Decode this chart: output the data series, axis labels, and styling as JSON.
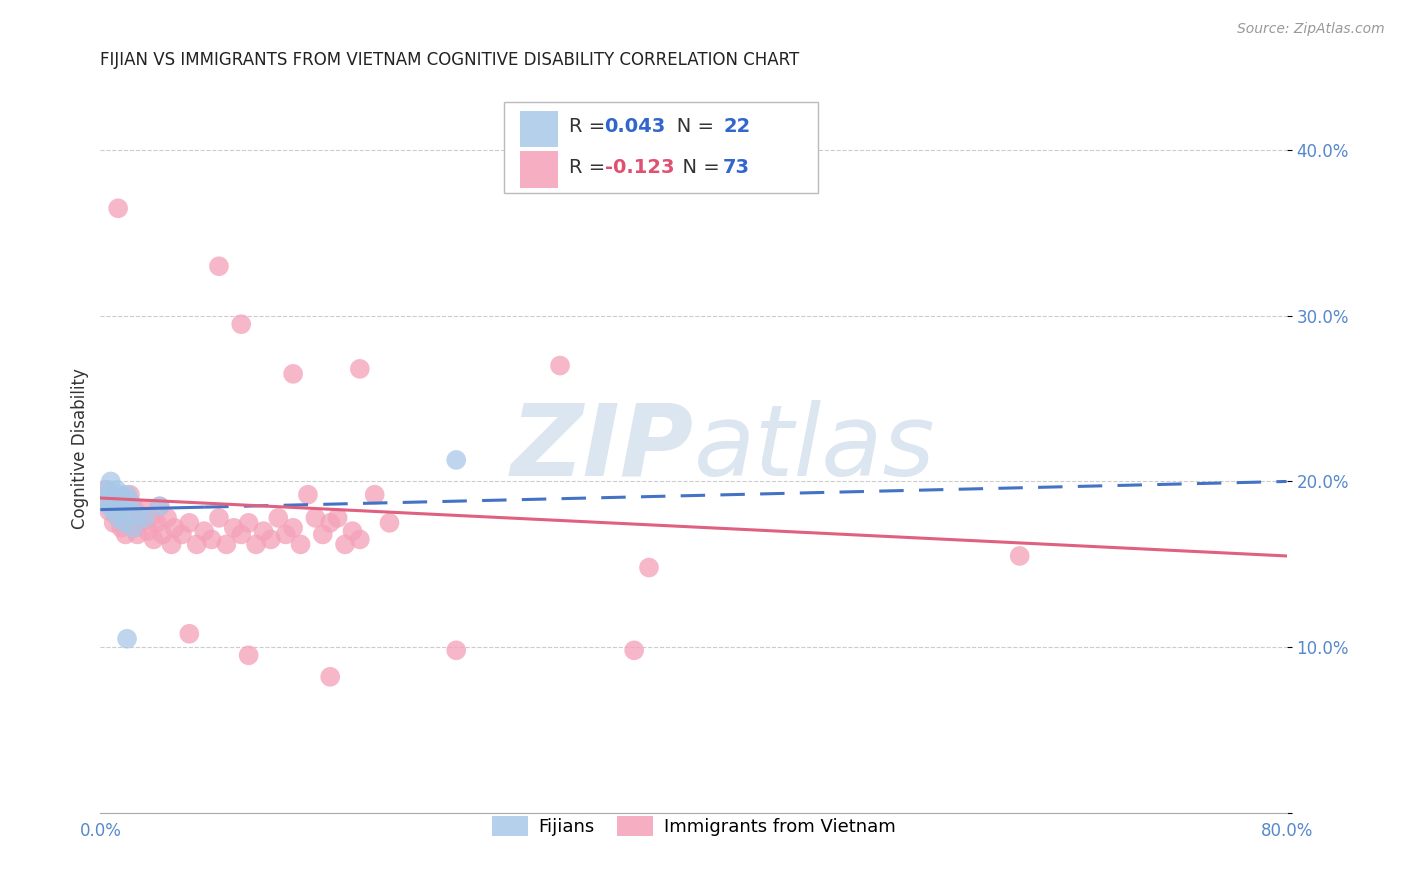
{
  "title": "FIJIAN VS IMMIGRANTS FROM VIETNAM COGNITIVE DISABILITY CORRELATION CHART",
  "source": "Source: ZipAtlas.com",
  "ylabel": "Cognitive Disability",
  "xlim": [
    0.0,
    0.8
  ],
  "ylim": [
    0.0,
    0.44
  ],
  "xticks": [
    0.0,
    0.1,
    0.2,
    0.3,
    0.4,
    0.5,
    0.6,
    0.7,
    0.8
  ],
  "xticklabels": [
    "0.0%",
    "",
    "",
    "",
    "",
    "",
    "",
    "",
    "80.0%"
  ],
  "yticks": [
    0.0,
    0.1,
    0.2,
    0.3,
    0.4
  ],
  "yticklabels_right": [
    "",
    "10.0%",
    "20.0%",
    "30.0%",
    "40.0%"
  ],
  "legend_r1": "R = 0.043",
  "legend_n1": "N = 22",
  "legend_r2": "R = -0.123",
  "legend_n2": "N = 73",
  "fijian_color": "#a8c8e8",
  "vietnam_color": "#f4a0b8",
  "fijian_line_color": "#4472c4",
  "vietnam_line_color": "#e06080",
  "background_color": "#ffffff",
  "grid_color": "#cccccc",
  "watermark_color": "#dce6f0",
  "fijian_points": [
    [
      0.003,
      0.19
    ],
    [
      0.005,
      0.195
    ],
    [
      0.006,
      0.185
    ],
    [
      0.007,
      0.2
    ],
    [
      0.008,
      0.193
    ],
    [
      0.009,
      0.182
    ],
    [
      0.01,
      0.188
    ],
    [
      0.011,
      0.195
    ],
    [
      0.012,
      0.178
    ],
    [
      0.013,
      0.192
    ],
    [
      0.014,
      0.185
    ],
    [
      0.015,
      0.19
    ],
    [
      0.016,
      0.175
    ],
    [
      0.017,
      0.183
    ],
    [
      0.018,
      0.192
    ],
    [
      0.02,
      0.188
    ],
    [
      0.022,
      0.172
    ],
    [
      0.025,
      0.18
    ],
    [
      0.03,
      0.178
    ],
    [
      0.04,
      0.185
    ],
    [
      0.018,
      0.105
    ],
    [
      0.24,
      0.213
    ]
  ],
  "vietnam_points": [
    [
      0.003,
      0.195
    ],
    [
      0.005,
      0.188
    ],
    [
      0.006,
      0.182
    ],
    [
      0.007,
      0.192
    ],
    [
      0.008,
      0.185
    ],
    [
      0.009,
      0.175
    ],
    [
      0.01,
      0.19
    ],
    [
      0.011,
      0.183
    ],
    [
      0.012,
      0.178
    ],
    [
      0.013,
      0.188
    ],
    [
      0.014,
      0.172
    ],
    [
      0.015,
      0.185
    ],
    [
      0.016,
      0.178
    ],
    [
      0.017,
      0.168
    ],
    [
      0.018,
      0.182
    ],
    [
      0.019,
      0.175
    ],
    [
      0.02,
      0.192
    ],
    [
      0.021,
      0.178
    ],
    [
      0.022,
      0.185
    ],
    [
      0.023,
      0.172
    ],
    [
      0.025,
      0.168
    ],
    [
      0.026,
      0.18
    ],
    [
      0.028,
      0.175
    ],
    [
      0.03,
      0.183
    ],
    [
      0.032,
      0.17
    ],
    [
      0.034,
      0.178
    ],
    [
      0.036,
      0.165
    ],
    [
      0.038,
      0.175
    ],
    [
      0.04,
      0.185
    ],
    [
      0.042,
      0.168
    ],
    [
      0.045,
      0.178
    ],
    [
      0.048,
      0.162
    ],
    [
      0.05,
      0.172
    ],
    [
      0.055,
      0.168
    ],
    [
      0.06,
      0.175
    ],
    [
      0.065,
      0.162
    ],
    [
      0.07,
      0.17
    ],
    [
      0.075,
      0.165
    ],
    [
      0.08,
      0.178
    ],
    [
      0.085,
      0.162
    ],
    [
      0.09,
      0.172
    ],
    [
      0.095,
      0.168
    ],
    [
      0.1,
      0.175
    ],
    [
      0.105,
      0.162
    ],
    [
      0.11,
      0.17
    ],
    [
      0.115,
      0.165
    ],
    [
      0.12,
      0.178
    ],
    [
      0.125,
      0.168
    ],
    [
      0.13,
      0.172
    ],
    [
      0.135,
      0.162
    ],
    [
      0.14,
      0.192
    ],
    [
      0.145,
      0.178
    ],
    [
      0.15,
      0.168
    ],
    [
      0.155,
      0.175
    ],
    [
      0.16,
      0.178
    ],
    [
      0.165,
      0.162
    ],
    [
      0.17,
      0.17
    ],
    [
      0.175,
      0.165
    ],
    [
      0.185,
      0.192
    ],
    [
      0.195,
      0.175
    ],
    [
      0.012,
      0.365
    ],
    [
      0.08,
      0.33
    ],
    [
      0.13,
      0.265
    ],
    [
      0.175,
      0.268
    ],
    [
      0.06,
      0.108
    ],
    [
      0.1,
      0.095
    ],
    [
      0.155,
      0.082
    ],
    [
      0.24,
      0.098
    ],
    [
      0.095,
      0.295
    ],
    [
      0.31,
      0.27
    ],
    [
      0.36,
      0.098
    ],
    [
      0.37,
      0.148
    ],
    [
      0.62,
      0.155
    ]
  ]
}
